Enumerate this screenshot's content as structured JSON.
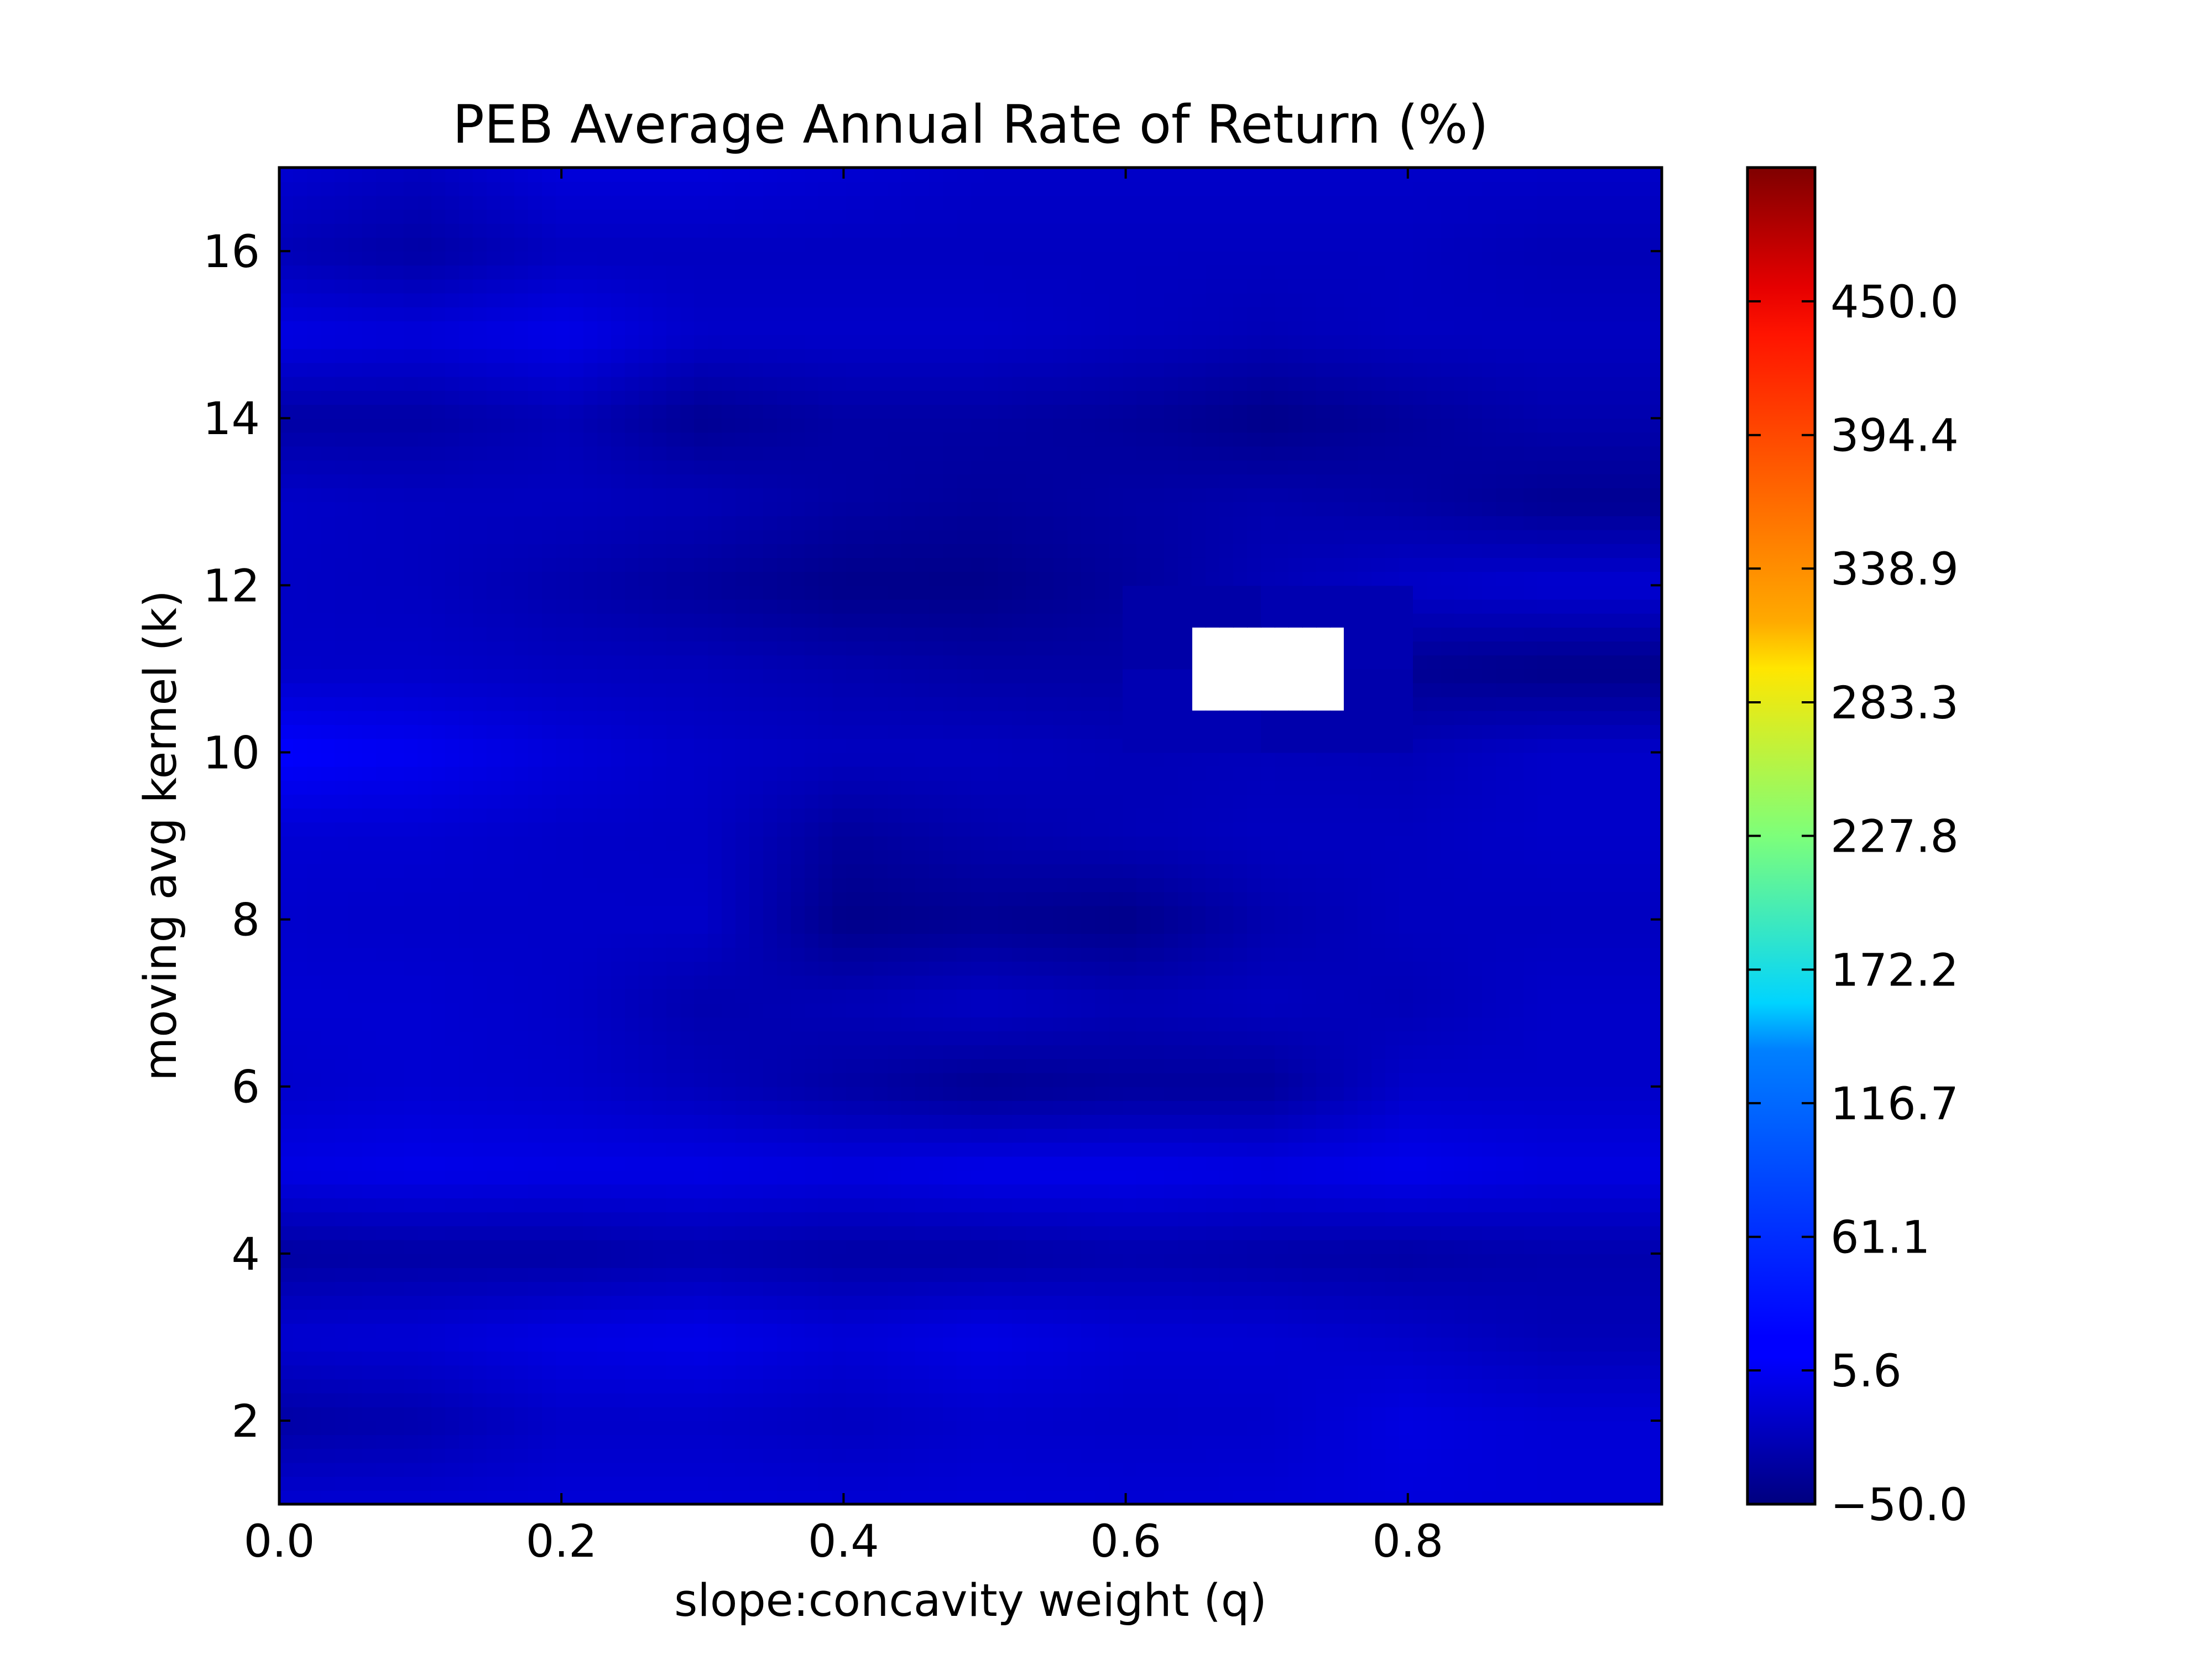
{
  "chart_data": {
    "type": "heatmap",
    "title": "PEB Average Annual Rate of Return (%)",
    "xlabel": "slope:concavity weight (q)",
    "ylabel": "moving avg kernel (k)",
    "xlim": [
      0.0,
      0.98
    ],
    "ylim": [
      1,
      17
    ],
    "x_ticks": [
      {
        "value": 0.0,
        "label": "0.0"
      },
      {
        "value": 0.2,
        "label": "0.2"
      },
      {
        "value": 0.4,
        "label": "0.4"
      },
      {
        "value": 0.6,
        "label": "0.6"
      },
      {
        "value": 0.8,
        "label": "0.8"
      }
    ],
    "y_ticks": [
      {
        "value": 2,
        "label": "2"
      },
      {
        "value": 4,
        "label": "4"
      },
      {
        "value": 6,
        "label": "6"
      },
      {
        "value": 8,
        "label": "8"
      },
      {
        "value": 10,
        "label": "10"
      },
      {
        "value": 12,
        "label": "12"
      },
      {
        "value": 14,
        "label": "14"
      },
      {
        "value": 16,
        "label": "16"
      }
    ],
    "colorbar": {
      "colormap": "jet",
      "vmin": -50.0,
      "vmax": 505.6,
      "ticks": [
        {
          "value": -50.0,
          "label": "−50.0"
        },
        {
          "value": 5.6,
          "label": "5.6"
        },
        {
          "value": 61.1,
          "label": "61.1"
        },
        {
          "value": 116.7,
          "label": "116.7"
        },
        {
          "value": 172.2,
          "label": "172.2"
        },
        {
          "value": 227.8,
          "label": "227.8"
        },
        {
          "value": 283.3,
          "label": "283.3"
        },
        {
          "value": 338.9,
          "label": "338.9"
        },
        {
          "value": 394.4,
          "label": "394.4"
        },
        {
          "value": 450.0,
          "label": "450.0"
        }
      ]
    },
    "x": [
      0.0,
      0.1,
      0.2,
      0.3,
      0.4,
      0.5,
      0.6,
      0.7,
      0.8,
      0.9
    ],
    "y": [
      1,
      2,
      3,
      4,
      5,
      6,
      7,
      8,
      9,
      10,
      11,
      12,
      13,
      14,
      15,
      16,
      17
    ],
    "z": [
      [
        -5,
        -5,
        -3,
        -3,
        -4,
        -3,
        -4,
        -3,
        0,
        -2
      ],
      [
        -30,
        -25,
        -10,
        -10,
        -15,
        -8,
        -10,
        -9,
        3,
        -3
      ],
      [
        -5,
        -3,
        5,
        8,
        -2,
        6,
        -3,
        -4,
        -10,
        -20
      ],
      [
        -32,
        -30,
        -30,
        -25,
        -30,
        -30,
        -25,
        -28,
        -30,
        -25
      ],
      [
        5,
        8,
        6,
        6,
        3,
        8,
        8,
        5,
        10,
        3
      ],
      [
        -8,
        -5,
        -8,
        -18,
        -30,
        -40,
        -35,
        -35,
        -10,
        -10
      ],
      [
        -5,
        -5,
        -10,
        -25,
        -20,
        -12,
        -20,
        -15,
        -20,
        -10
      ],
      [
        -8,
        -10,
        -10,
        -10,
        -45,
        -40,
        -45,
        -25,
        -15,
        -15
      ],
      [
        -5,
        -5,
        -10,
        -12,
        -35,
        -25,
        -20,
        -15,
        -15,
        -10
      ],
      [
        20,
        12,
        0,
        -10,
        -15,
        -15,
        -20,
        -18,
        -20,
        -10
      ],
      [
        -10,
        -10,
        -15,
        -18,
        -25,
        -30,
        -30,
        null,
        -40,
        -45
      ],
      [
        -12,
        -15,
        -25,
        -35,
        -45,
        -45,
        -35,
        -20,
        -10,
        -5
      ],
      [
        -10,
        -15,
        -15,
        -20,
        -30,
        -35,
        -30,
        -25,
        -30,
        -40
      ],
      [
        -30,
        -30,
        -20,
        -40,
        -30,
        -30,
        -35,
        -45,
        -35,
        -25
      ],
      [
        5,
        0,
        8,
        -10,
        -10,
        -10,
        -15,
        -20,
        -15,
        -15
      ],
      [
        -20,
        -30,
        -15,
        -15,
        -15,
        -15,
        -15,
        -15,
        -15,
        -20
      ],
      [
        -5,
        -15,
        0,
        0,
        -5,
        -10,
        -10,
        -10,
        -10,
        -10
      ]
    ]
  }
}
